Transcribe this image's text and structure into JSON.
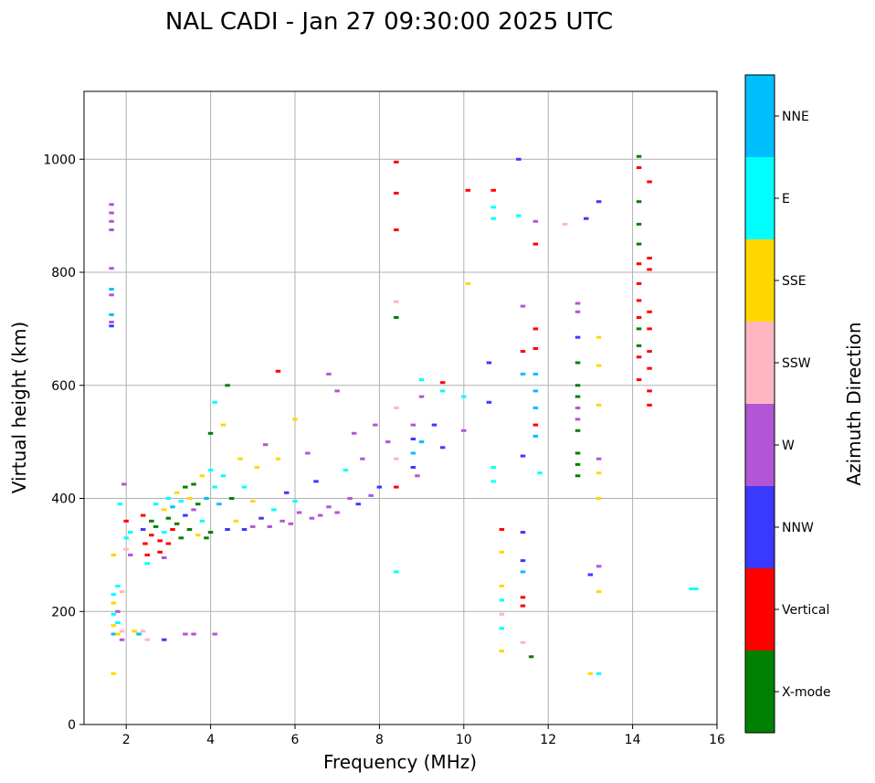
{
  "chart_data": {
    "type": "scatter",
    "title": "NAL CADI - Jan 27 09:30:00 2025 UTC",
    "xlabel": "Frequency (MHz)",
    "ylabel": "Virtual height (km)",
    "xlim": [
      1,
      16
    ],
    "ylim": [
      0,
      1120
    ],
    "xticks": [
      2,
      4,
      6,
      8,
      10,
      12,
      14,
      16
    ],
    "yticks": [
      0,
      200,
      400,
      600,
      800,
      1000
    ],
    "grid": true,
    "colorbar": {
      "label": "Azimuth Direction",
      "categories": [
        {
          "name": "X-mode",
          "color": "#008000"
        },
        {
          "name": "Vertical",
          "color": "#ff0000"
        },
        {
          "name": "NNW",
          "color": "#3a3aff"
        },
        {
          "name": "W",
          "color": "#b356d6"
        },
        {
          "name": "SSW",
          "color": "#ffb6c1"
        },
        {
          "name": "SSE",
          "color": "#ffd700"
        },
        {
          "name": "E",
          "color": "#00ffff"
        },
        {
          "name": "NNE",
          "color": "#00bfff"
        }
      ]
    },
    "points": [
      [
        1.65,
        920,
        "W"
      ],
      [
        1.65,
        905,
        "W"
      ],
      [
        1.65,
        890,
        "W"
      ],
      [
        1.65,
        875,
        "W"
      ],
      [
        1.65,
        807,
        "W"
      ],
      [
        1.65,
        770,
        "NNE"
      ],
      [
        1.65,
        760,
        "W"
      ],
      [
        1.65,
        725,
        "NNE"
      ],
      [
        1.65,
        712,
        "W"
      ],
      [
        1.65,
        705,
        "NNW"
      ],
      [
        1.7,
        230,
        "E"
      ],
      [
        1.7,
        215,
        "SSE"
      ],
      [
        1.7,
        195,
        "E"
      ],
      [
        1.7,
        175,
        "SSE"
      ],
      [
        1.7,
        160,
        "NNE"
      ],
      [
        1.7,
        90,
        "SSE"
      ],
      [
        1.7,
        300,
        "SSE"
      ],
      [
        1.8,
        245,
        "E"
      ],
      [
        1.8,
        200,
        "W"
      ],
      [
        1.8,
        180,
        "E"
      ],
      [
        1.8,
        160,
        "SSE"
      ],
      [
        1.9,
        235,
        "SSW"
      ],
      [
        1.9,
        165,
        "SSW"
      ],
      [
        1.9,
        150,
        "W"
      ],
      [
        1.85,
        390,
        "E"
      ],
      [
        1.95,
        425,
        "W"
      ],
      [
        2.0,
        360,
        "Vertical"
      ],
      [
        2.0,
        330,
        "E"
      ],
      [
        2.0,
        310,
        "SSW"
      ],
      [
        2.1,
        340,
        "E"
      ],
      [
        2.1,
        300,
        "W"
      ],
      [
        2.2,
        165,
        "SSE"
      ],
      [
        2.3,
        160,
        "NNE"
      ],
      [
        2.4,
        165,
        "SSW"
      ],
      [
        2.5,
        150,
        "SSW"
      ],
      [
        2.9,
        150,
        "NNW"
      ],
      [
        3.4,
        160,
        "W"
      ],
      [
        3.6,
        160,
        "W"
      ],
      [
        4.1,
        160,
        "W"
      ],
      [
        2.4,
        370,
        "Vertical"
      ],
      [
        2.4,
        345,
        "NNW"
      ],
      [
        2.45,
        320,
        "Vertical"
      ],
      [
        2.5,
        300,
        "Vertical"
      ],
      [
        2.5,
        285,
        "E"
      ],
      [
        2.6,
        360,
        "X-mode"
      ],
      [
        2.6,
        335,
        "Vertical"
      ],
      [
        2.7,
        390,
        "E"
      ],
      [
        2.7,
        350,
        "X-mode"
      ],
      [
        2.8,
        325,
        "Vertical"
      ],
      [
        2.8,
        305,
        "Vertical"
      ],
      [
        2.9,
        380,
        "SSE"
      ],
      [
        2.9,
        340,
        "E"
      ],
      [
        2.9,
        295,
        "W"
      ],
      [
        3.0,
        400,
        "E"
      ],
      [
        3.0,
        365,
        "X-mode"
      ],
      [
        3.0,
        320,
        "Vertical"
      ],
      [
        3.1,
        385,
        "NNE"
      ],
      [
        3.1,
        345,
        "Vertical"
      ],
      [
        3.2,
        410,
        "SSE"
      ],
      [
        3.2,
        355,
        "X-mode"
      ],
      [
        3.3,
        395,
        "E"
      ],
      [
        3.3,
        330,
        "X-mode"
      ],
      [
        3.4,
        420,
        "X-mode"
      ],
      [
        3.4,
        370,
        "NNW"
      ],
      [
        3.5,
        400,
        "SSE"
      ],
      [
        3.5,
        345,
        "X-mode"
      ],
      [
        3.6,
        425,
        "X-mode"
      ],
      [
        3.6,
        380,
        "W"
      ],
      [
        3.7,
        390,
        "X-mode"
      ],
      [
        3.7,
        335,
        "SSE"
      ],
      [
        3.8,
        440,
        "SSE"
      ],
      [
        3.8,
        360,
        "E"
      ],
      [
        3.9,
        400,
        "NNE"
      ],
      [
        3.9,
        330,
        "X-mode"
      ],
      [
        4.0,
        450,
        "E"
      ],
      [
        4.0,
        340,
        "X-mode"
      ],
      [
        4.0,
        515,
        "X-mode"
      ],
      [
        4.1,
        570,
        "E"
      ],
      [
        4.1,
        420,
        "E"
      ],
      [
        4.2,
        390,
        "NNE"
      ],
      [
        4.3,
        530,
        "SSE"
      ],
      [
        4.3,
        440,
        "E"
      ],
      [
        4.4,
        600,
        "X-mode"
      ],
      [
        4.4,
        345,
        "NNW"
      ],
      [
        4.5,
        400,
        "X-mode"
      ],
      [
        4.6,
        360,
        "SSE"
      ],
      [
        4.7,
        470,
        "SSE"
      ],
      [
        4.8,
        345,
        "NNW"
      ],
      [
        4.8,
        420,
        "E"
      ],
      [
        5.0,
        395,
        "SSE"
      ],
      [
        5.0,
        350,
        "W"
      ],
      [
        5.1,
        455,
        "SSE"
      ],
      [
        5.2,
        365,
        "NNW"
      ],
      [
        5.3,
        495,
        "W"
      ],
      [
        5.4,
        350,
        "W"
      ],
      [
        5.5,
        380,
        "E"
      ],
      [
        5.6,
        470,
        "SSE"
      ],
      [
        5.6,
        625,
        "Vertical"
      ],
      [
        5.7,
        360,
        "W"
      ],
      [
        5.8,
        410,
        "NNW"
      ],
      [
        5.9,
        355,
        "W"
      ],
      [
        6.0,
        540,
        "SSE"
      ],
      [
        6.0,
        395,
        "E"
      ],
      [
        6.1,
        375,
        "W"
      ],
      [
        6.3,
        480,
        "W"
      ],
      [
        6.4,
        365,
        "W"
      ],
      [
        6.5,
        430,
        "NNW"
      ],
      [
        6.6,
        370,
        "W"
      ],
      [
        6.8,
        620,
        "W"
      ],
      [
        6.8,
        385,
        "W"
      ],
      [
        7.0,
        590,
        "W"
      ],
      [
        7.0,
        375,
        "W"
      ],
      [
        7.2,
        450,
        "E"
      ],
      [
        7.3,
        400,
        "W"
      ],
      [
        7.4,
        515,
        "W"
      ],
      [
        7.5,
        390,
        "NNW"
      ],
      [
        7.6,
        470,
        "W"
      ],
      [
        7.8,
        405,
        "W"
      ],
      [
        7.9,
        530,
        "W"
      ],
      [
        8.0,
        420,
        "NNW"
      ],
      [
        8.2,
        500,
        "W"
      ],
      [
        8.4,
        995,
        "Vertical"
      ],
      [
        8.4,
        940,
        "Vertical"
      ],
      [
        8.4,
        875,
        "Vertical"
      ],
      [
        8.4,
        748,
        "SSW"
      ],
      [
        8.4,
        720,
        "X-mode"
      ],
      [
        8.4,
        560,
        "SSW"
      ],
      [
        8.4,
        470,
        "SSW"
      ],
      [
        8.4,
        420,
        "Vertical"
      ],
      [
        8.4,
        270,
        "E"
      ],
      [
        8.8,
        530,
        "W"
      ],
      [
        8.8,
        505,
        "NNW"
      ],
      [
        8.8,
        480,
        "NNE"
      ],
      [
        8.8,
        455,
        "NNW"
      ],
      [
        8.9,
        440,
        "W"
      ],
      [
        9.0,
        610,
        "E"
      ],
      [
        9.0,
        580,
        "W"
      ],
      [
        9.0,
        500,
        "NNE"
      ],
      [
        9.3,
        530,
        "NNW"
      ],
      [
        9.5,
        605,
        "Vertical"
      ],
      [
        9.5,
        490,
        "NNW"
      ],
      [
        9.5,
        590,
        "E"
      ],
      [
        10.0,
        580,
        "E"
      ],
      [
        10.0,
        520,
        "W"
      ],
      [
        10.1,
        945,
        "Vertical"
      ],
      [
        10.1,
        780,
        "SSE"
      ],
      [
        10.6,
        640,
        "NNW"
      ],
      [
        10.6,
        570,
        "NNW"
      ],
      [
        10.7,
        945,
        "Vertical"
      ],
      [
        10.7,
        915,
        "E"
      ],
      [
        10.7,
        895,
        "E"
      ],
      [
        10.7,
        455,
        "E"
      ],
      [
        10.7,
        430,
        "E"
      ],
      [
        10.9,
        345,
        "Vertical"
      ],
      [
        10.9,
        305,
        "SSE"
      ],
      [
        10.9,
        245,
        "SSE"
      ],
      [
        10.9,
        220,
        "E"
      ],
      [
        10.9,
        195,
        "SSW"
      ],
      [
        10.9,
        170,
        "E"
      ],
      [
        10.9,
        130,
        "SSE"
      ],
      [
        11.3,
        1000,
        "NNW"
      ],
      [
        11.3,
        900,
        "E"
      ],
      [
        11.4,
        740,
        "W"
      ],
      [
        11.4,
        660,
        "Vertical"
      ],
      [
        11.4,
        620,
        "NNE"
      ],
      [
        11.4,
        475,
        "NNW"
      ],
      [
        11.4,
        340,
        "NNW"
      ],
      [
        11.4,
        290,
        "NNW"
      ],
      [
        11.4,
        270,
        "NNE"
      ],
      [
        11.4,
        225,
        "Vertical"
      ],
      [
        11.4,
        210,
        "Vertical"
      ],
      [
        11.4,
        145,
        "SSW"
      ],
      [
        11.6,
        120,
        "X-mode"
      ],
      [
        11.7,
        890,
        "W"
      ],
      [
        11.7,
        850,
        "Vertical"
      ],
      [
        11.7,
        700,
        "Vertical"
      ],
      [
        11.7,
        665,
        "Vertical"
      ],
      [
        11.7,
        620,
        "NNE"
      ],
      [
        11.7,
        590,
        "NNE"
      ],
      [
        11.7,
        560,
        "NNE"
      ],
      [
        11.7,
        530,
        "Vertical"
      ],
      [
        11.7,
        510,
        "NNE"
      ],
      [
        11.8,
        445,
        "E"
      ],
      [
        12.4,
        885,
        "SSW"
      ],
      [
        12.7,
        745,
        "W"
      ],
      [
        12.7,
        730,
        "W"
      ],
      [
        12.7,
        685,
        "NNW"
      ],
      [
        12.7,
        640,
        "X-mode"
      ],
      [
        12.7,
        600,
        "X-mode"
      ],
      [
        12.7,
        580,
        "X-mode"
      ],
      [
        12.7,
        560,
        "W"
      ],
      [
        12.7,
        540,
        "W"
      ],
      [
        12.7,
        520,
        "X-mode"
      ],
      [
        12.7,
        480,
        "X-mode"
      ],
      [
        12.7,
        460,
        "X-mode"
      ],
      [
        12.7,
        440,
        "X-mode"
      ],
      [
        12.9,
        895,
        "NNW"
      ],
      [
        13.0,
        265,
        "NNW"
      ],
      [
        13.0,
        90,
        "SSE"
      ],
      [
        13.2,
        925,
        "NNW"
      ],
      [
        13.2,
        685,
        "SSE"
      ],
      [
        13.2,
        635,
        "SSE"
      ],
      [
        13.2,
        565,
        "SSE"
      ],
      [
        13.2,
        470,
        "W"
      ],
      [
        13.2,
        445,
        "SSE"
      ],
      [
        13.2,
        400,
        "SSE"
      ],
      [
        13.2,
        280,
        "W"
      ],
      [
        13.2,
        235,
        "SSE"
      ],
      [
        13.2,
        90,
        "E"
      ],
      [
        14.15,
        1005,
        "X-mode"
      ],
      [
        14.15,
        985,
        "Vertical"
      ],
      [
        14.15,
        925,
        "X-mode"
      ],
      [
        14.15,
        885,
        "X-mode"
      ],
      [
        14.15,
        850,
        "X-mode"
      ],
      [
        14.15,
        815,
        "Vertical"
      ],
      [
        14.15,
        780,
        "Vertical"
      ],
      [
        14.15,
        750,
        "Vertical"
      ],
      [
        14.15,
        720,
        "Vertical"
      ],
      [
        14.15,
        700,
        "X-mode"
      ],
      [
        14.15,
        670,
        "X-mode"
      ],
      [
        14.15,
        650,
        "Vertical"
      ],
      [
        14.15,
        610,
        "Vertical"
      ],
      [
        14.4,
        960,
        "Vertical"
      ],
      [
        14.4,
        825,
        "Vertical"
      ],
      [
        14.4,
        805,
        "Vertical"
      ],
      [
        14.4,
        730,
        "Vertical"
      ],
      [
        14.4,
        700,
        "Vertical"
      ],
      [
        14.4,
        660,
        "Vertical"
      ],
      [
        14.4,
        630,
        "Vertical"
      ],
      [
        14.4,
        590,
        "Vertical"
      ],
      [
        14.4,
        565,
        "Vertical"
      ],
      [
        15.4,
        240,
        "E"
      ],
      [
        15.5,
        240,
        "E"
      ]
    ]
  }
}
